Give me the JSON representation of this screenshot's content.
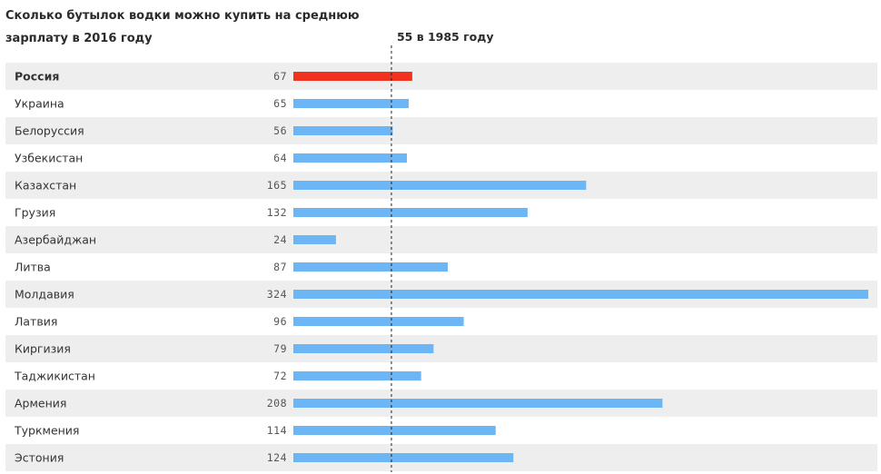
{
  "chart_data": {
    "type": "bar",
    "orientation": "horizontal",
    "title": "Сколько бутылок водки можно купить на среднюю зарплату в 2016 году",
    "categories": [
      "Россия",
      "Украина",
      "Белоруссия",
      "Узбекистан",
      "Казахстан",
      "Грузия",
      "Азербайджан",
      "Литва",
      "Молдавия",
      "Латвия",
      "Киргизия",
      "Таджикистан",
      "Армения",
      "Туркмения",
      "Эстония"
    ],
    "values": [
      67,
      65,
      56,
      64,
      165,
      132,
      24,
      87,
      324,
      96,
      79,
      72,
      208,
      114,
      124
    ],
    "highlight": "Россия",
    "reference_line": {
      "value": 55,
      "label": "55 в 1985 году"
    },
    "xlim": [
      0,
      324
    ],
    "colors": {
      "default": "#6cb6f5",
      "highlight": "#f0321e",
      "row_alt": "#eeeeee"
    },
    "grid": false
  }
}
